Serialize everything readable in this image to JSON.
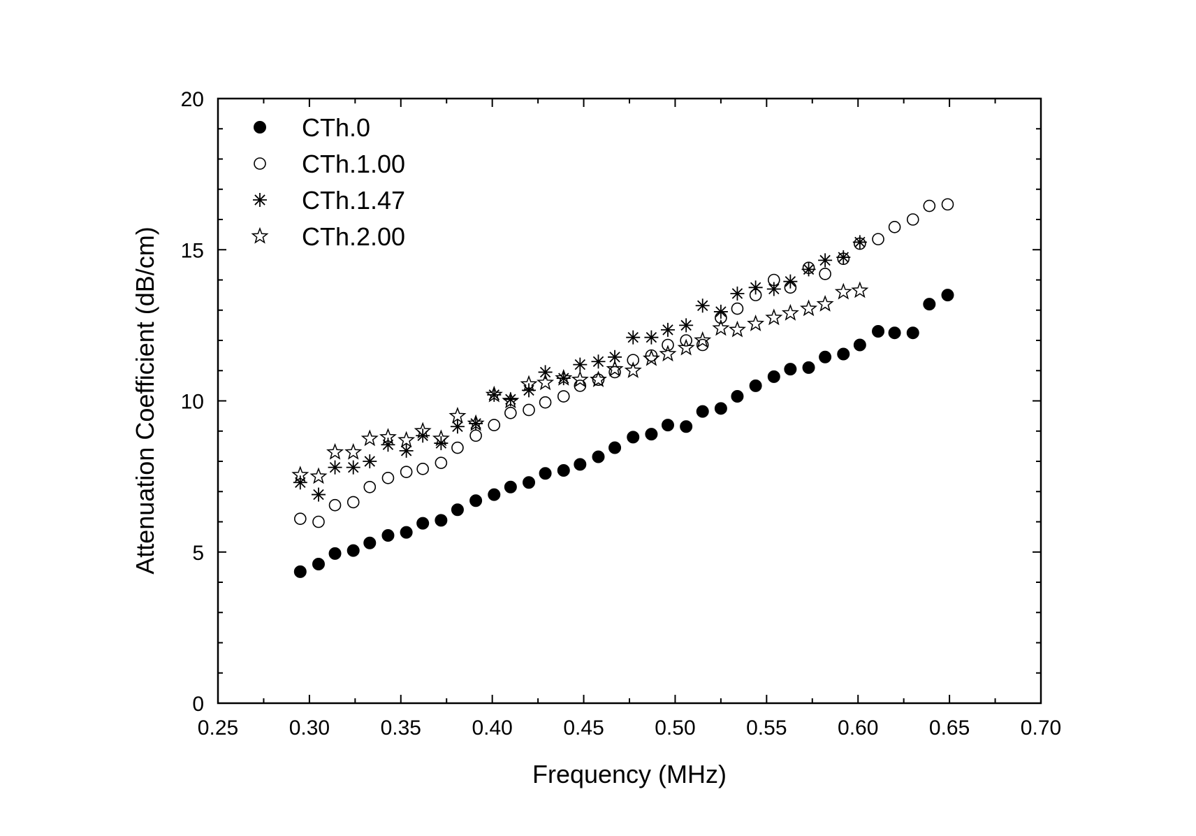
{
  "chart_data": {
    "type": "scatter",
    "title": "",
    "xlabel": "Frequency (MHz)",
    "ylabel": "Attenuation Coefficient (dB/cm)",
    "xlim": [
      0.25,
      0.7
    ],
    "ylim": [
      0,
      20
    ],
    "xticks": [
      0.25,
      0.3,
      0.35,
      0.4,
      0.45,
      0.5,
      0.55,
      0.6,
      0.65,
      0.7
    ],
    "xtick_labels": [
      "0.25",
      "0.30",
      "0.35",
      "0.40",
      "0.45",
      "0.50",
      "0.55",
      "0.60",
      "0.65",
      "0.70"
    ],
    "yticks": [
      0,
      5,
      10,
      15,
      20
    ],
    "ytick_labels": [
      "0",
      "5",
      "10",
      "15",
      "20"
    ],
    "x_minor_step": 0.025,
    "y_minor_step": 1,
    "grid": false,
    "legend_position": "top-left",
    "series": [
      {
        "name": "CTh.0",
        "marker": "filled-circle",
        "x": [
          0.295,
          0.305,
          0.314,
          0.324,
          0.333,
          0.343,
          0.353,
          0.362,
          0.372,
          0.381,
          0.391,
          0.401,
          0.41,
          0.42,
          0.429,
          0.439,
          0.448,
          0.458,
          0.467,
          0.477,
          0.487,
          0.496,
          0.506,
          0.515,
          0.525,
          0.534,
          0.544,
          0.554,
          0.563,
          0.573,
          0.582,
          0.592,
          0.601,
          0.611,
          0.62,
          0.63,
          0.639,
          0.649
        ],
        "y": [
          4.35,
          4.6,
          4.95,
          5.05,
          5.3,
          5.55,
          5.65,
          5.95,
          6.05,
          6.4,
          6.7,
          6.9,
          7.15,
          7.3,
          7.6,
          7.7,
          7.9,
          8.15,
          8.45,
          8.8,
          8.9,
          9.2,
          9.15,
          9.65,
          9.75,
          10.15,
          10.5,
          10.8,
          11.05,
          11.1,
          11.45,
          11.55,
          11.85,
          12.3,
          12.25,
          12.25,
          13.2,
          13.5
        ]
      },
      {
        "name": "CTh.1.00",
        "marker": "open-circle",
        "x": [
          0.295,
          0.305,
          0.314,
          0.324,
          0.333,
          0.343,
          0.353,
          0.362,
          0.372,
          0.381,
          0.391,
          0.401,
          0.41,
          0.42,
          0.429,
          0.439,
          0.448,
          0.458,
          0.467,
          0.477,
          0.487,
          0.496,
          0.506,
          0.515,
          0.525,
          0.534,
          0.544,
          0.554,
          0.563,
          0.573,
          0.582,
          0.592,
          0.601,
          0.611,
          0.62,
          0.63,
          0.639,
          0.649
        ],
        "y": [
          6.1,
          6.0,
          6.55,
          6.65,
          7.15,
          7.45,
          7.65,
          7.75,
          7.95,
          8.45,
          8.85,
          9.2,
          9.6,
          9.7,
          9.95,
          10.15,
          10.5,
          10.7,
          10.95,
          11.35,
          11.5,
          11.85,
          12.0,
          11.85,
          12.75,
          13.05,
          13.5,
          14.0,
          13.75,
          14.4,
          14.2,
          14.7,
          15.2,
          15.35,
          15.75,
          16.0,
          16.45,
          16.5
        ]
      },
      {
        "name": "CTh.1.47",
        "marker": "asterisk",
        "x": [
          0.295,
          0.305,
          0.314,
          0.324,
          0.333,
          0.343,
          0.353,
          0.362,
          0.372,
          0.381,
          0.391,
          0.401,
          0.41,
          0.42,
          0.429,
          0.439,
          0.448,
          0.458,
          0.467,
          0.477,
          0.487,
          0.496,
          0.506,
          0.515,
          0.525,
          0.534,
          0.544,
          0.554,
          0.563,
          0.573,
          0.582,
          0.592,
          0.601
        ],
        "y": [
          7.3,
          6.9,
          7.8,
          7.8,
          8.0,
          8.55,
          8.35,
          8.85,
          8.6,
          9.15,
          9.25,
          10.2,
          10.05,
          10.35,
          10.95,
          10.75,
          11.2,
          11.3,
          11.45,
          12.1,
          12.1,
          12.35,
          12.5,
          13.15,
          12.95,
          13.55,
          13.75,
          13.7,
          13.95,
          14.35,
          14.65,
          14.75,
          15.25
        ]
      },
      {
        "name": "CTh.2.00",
        "marker": "open-star",
        "x": [
          0.295,
          0.305,
          0.314,
          0.324,
          0.333,
          0.343,
          0.353,
          0.362,
          0.372,
          0.381,
          0.391,
          0.401,
          0.41,
          0.42,
          0.429,
          0.439,
          0.448,
          0.458,
          0.467,
          0.477,
          0.487,
          0.496,
          0.506,
          0.515,
          0.525,
          0.534,
          0.544,
          0.554,
          0.563,
          0.573,
          0.582,
          0.592,
          0.601
        ],
        "y": [
          7.55,
          7.5,
          8.3,
          8.3,
          8.75,
          8.8,
          8.7,
          9.0,
          8.75,
          9.5,
          9.25,
          10.2,
          10.0,
          10.55,
          10.6,
          10.75,
          10.7,
          10.7,
          11.05,
          11.0,
          11.4,
          11.55,
          11.75,
          12.0,
          12.4,
          12.35,
          12.55,
          12.75,
          12.9,
          13.05,
          13.2,
          13.6,
          13.65
        ]
      }
    ]
  }
}
